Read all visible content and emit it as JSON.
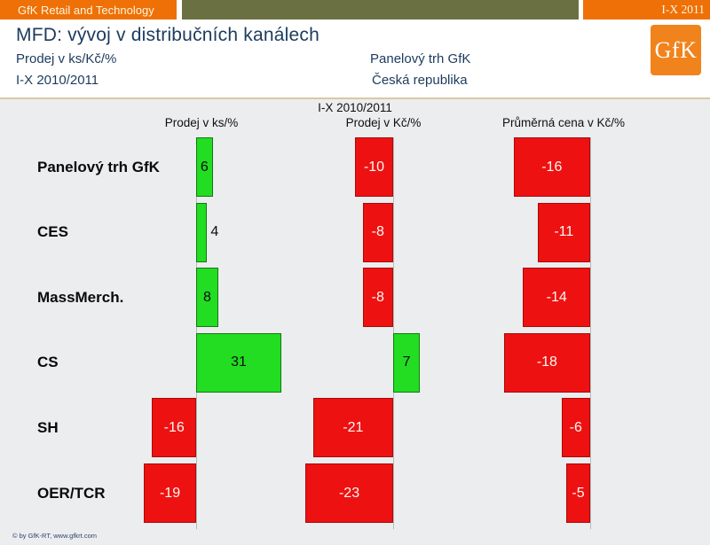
{
  "topbar": {
    "left_label": "GfK Retail and Technology",
    "right_label": "I-X 2011"
  },
  "header": {
    "title": "MFD: vývoj v distribučních kanálech",
    "subtitle_line1": "Prodej v ks/Kč/%",
    "subtitle_line2": "I-X 2010/2011",
    "center_line1": "Panelový trh GfK",
    "center_line2": "Česká republika",
    "logo_text": "GfK"
  },
  "chart_data": {
    "type": "bar",
    "orientation": "horizontal",
    "title": "I-X 2010/2011",
    "categories": [
      "Panelový trh GfK",
      "CES",
      "MassMerch.",
      "CS",
      "SH",
      "OER/TCR"
    ],
    "series": [
      {
        "name": "Prodej v ks/%",
        "values": [
          6,
          4,
          8,
          31,
          -16,
          -19
        ]
      },
      {
        "name": "Prodej v Kč/%",
        "values": [
          -10,
          -8,
          -8,
          7,
          -21,
          -23
        ]
      },
      {
        "name": "Průměrná cena v Kč/%",
        "values": [
          -16,
          -11,
          -14,
          -18,
          -6,
          -5
        ]
      }
    ],
    "positive_color": "#22DD22",
    "negative_color": "#EE1111",
    "grid": false,
    "legend": "none",
    "value_labels": "inside-center"
  },
  "footer": {
    "copyright": "© by GfK-RT, www.gfkrt.com"
  },
  "colors": {
    "accent_orange": "#EE7006",
    "olive": "#6B7042",
    "navy_text": "#1C3B5E",
    "chart_background": "#EBEDEE",
    "tan_divider": "#D9C8A3",
    "logo_orange": "#F1831C"
  }
}
